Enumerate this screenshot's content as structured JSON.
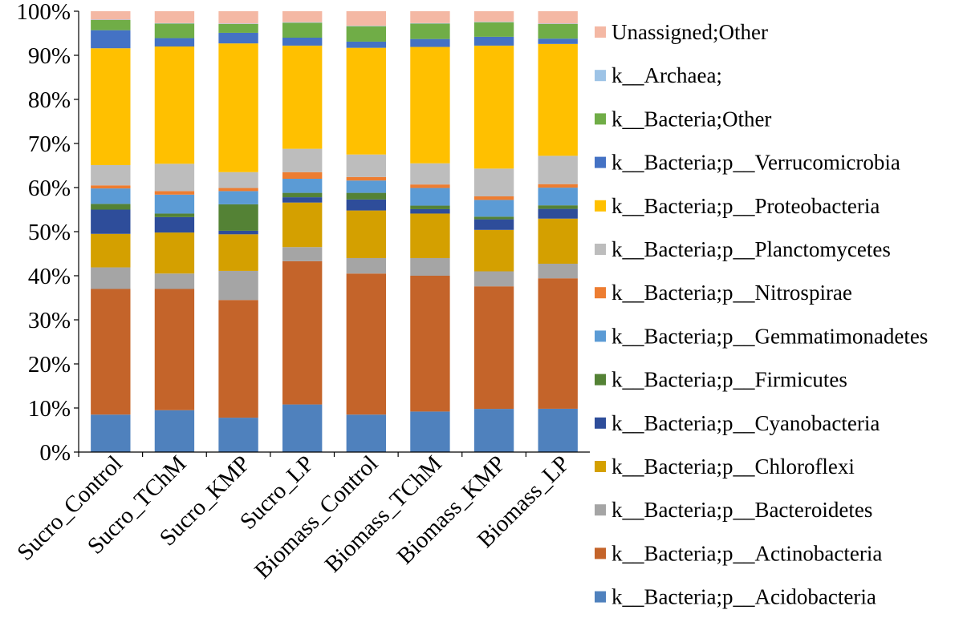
{
  "chart_data": {
    "type": "bar",
    "stacked": true,
    "percent": true,
    "title": "",
    "xlabel": "",
    "ylabel": "",
    "ylim": [
      0,
      100
    ],
    "y_ticks": [
      "0%",
      "10%",
      "20%",
      "30%",
      "40%",
      "50%",
      "60%",
      "70%",
      "80%",
      "90%",
      "100%"
    ],
    "grid": false,
    "legend_position": "right",
    "categories": [
      "Sucro_Control",
      "Sucro_TChM",
      "Sucro_KMP",
      "Sucro_LP",
      "Biomass_Control",
      "Biomass_TChM",
      "Biomass_KMP",
      "Biomass_LP"
    ],
    "series": [
      {
        "name": "k__Bacteria;p__Acidobacteria",
        "color": "#4F81BD",
        "values": [
          8.5,
          9.5,
          7.8,
          10.8,
          8.5,
          9.2,
          9.8,
          9.8
        ]
      },
      {
        "name": "k__Bacteria;p__Actinobacteria",
        "color": "#C4642A",
        "values": [
          28.5,
          27.5,
          26.7,
          32.5,
          32.0,
          30.8,
          27.8,
          29.5
        ]
      },
      {
        "name": "k__Bacteria;p__Bacteroidetes",
        "color": "#A5A5A5",
        "values": [
          4.9,
          3.5,
          6.6,
          3.2,
          3.5,
          4.0,
          3.4,
          3.3
        ]
      },
      {
        "name": "k__Bacteria;p__Chloroflexi",
        "color": "#D4A000",
        "values": [
          7.6,
          9.3,
          8.3,
          10.1,
          10.8,
          10.1,
          9.4,
          10.2
        ]
      },
      {
        "name": "k__Bacteria;p__Cyanobacteria",
        "color": "#2E4D9A",
        "values": [
          5.5,
          3.5,
          0.8,
          1.2,
          2.5,
          1.0,
          2.4,
          2.2
        ]
      },
      {
        "name": "k__Bacteria;p__Firmicutes",
        "color": "#548235",
        "values": [
          1.3,
          0.8,
          6.0,
          1.0,
          1.5,
          0.8,
          0.6,
          0.8
        ]
      },
      {
        "name": "k__Bacteria;p__Gemmatimonadetes",
        "color": "#5B9BD5",
        "values": [
          3.5,
          4.3,
          3.0,
          3.2,
          2.8,
          4.0,
          3.8,
          4.0
        ]
      },
      {
        "name": "k__Bacteria;p__Nitrospirae",
        "color": "#ED7D31",
        "values": [
          0.7,
          0.8,
          0.7,
          1.5,
          0.8,
          0.8,
          0.8,
          0.8
        ]
      },
      {
        "name": "k__Bacteria;p__Planctomycetes",
        "color": "#BDBDBD",
        "values": [
          4.6,
          6.2,
          3.6,
          5.3,
          5.1,
          4.8,
          6.3,
          6.4
        ]
      },
      {
        "name": "k__Bacteria;p__Proteobacteria",
        "color": "#FFC000",
        "values": [
          26.5,
          26.6,
          29.2,
          23.4,
          24.2,
          26.4,
          27.9,
          25.3
        ]
      },
      {
        "name": "k__Bacteria;p__Verrucomicrobia",
        "color": "#4472C4",
        "values": [
          4.1,
          1.9,
          2.4,
          1.8,
          1.4,
          1.8,
          2.0,
          1.2
        ]
      },
      {
        "name": "k__Bacteria;Other",
        "color": "#70AD47",
        "values": [
          2.3,
          3.3,
          2.0,
          3.4,
          3.5,
          3.5,
          3.3,
          3.3
        ]
      },
      {
        "name": "k__Archaea;",
        "color": "#9DC3E6",
        "values": [
          0.1,
          0.1,
          0.1,
          0.1,
          0.1,
          0.1,
          0.1,
          0.1
        ]
      },
      {
        "name": "Unassigned;Other",
        "color": "#F4B8A4",
        "values": [
          1.9,
          2.7,
          2.8,
          2.5,
          3.3,
          2.7,
          2.4,
          2.8
        ]
      }
    ]
  }
}
